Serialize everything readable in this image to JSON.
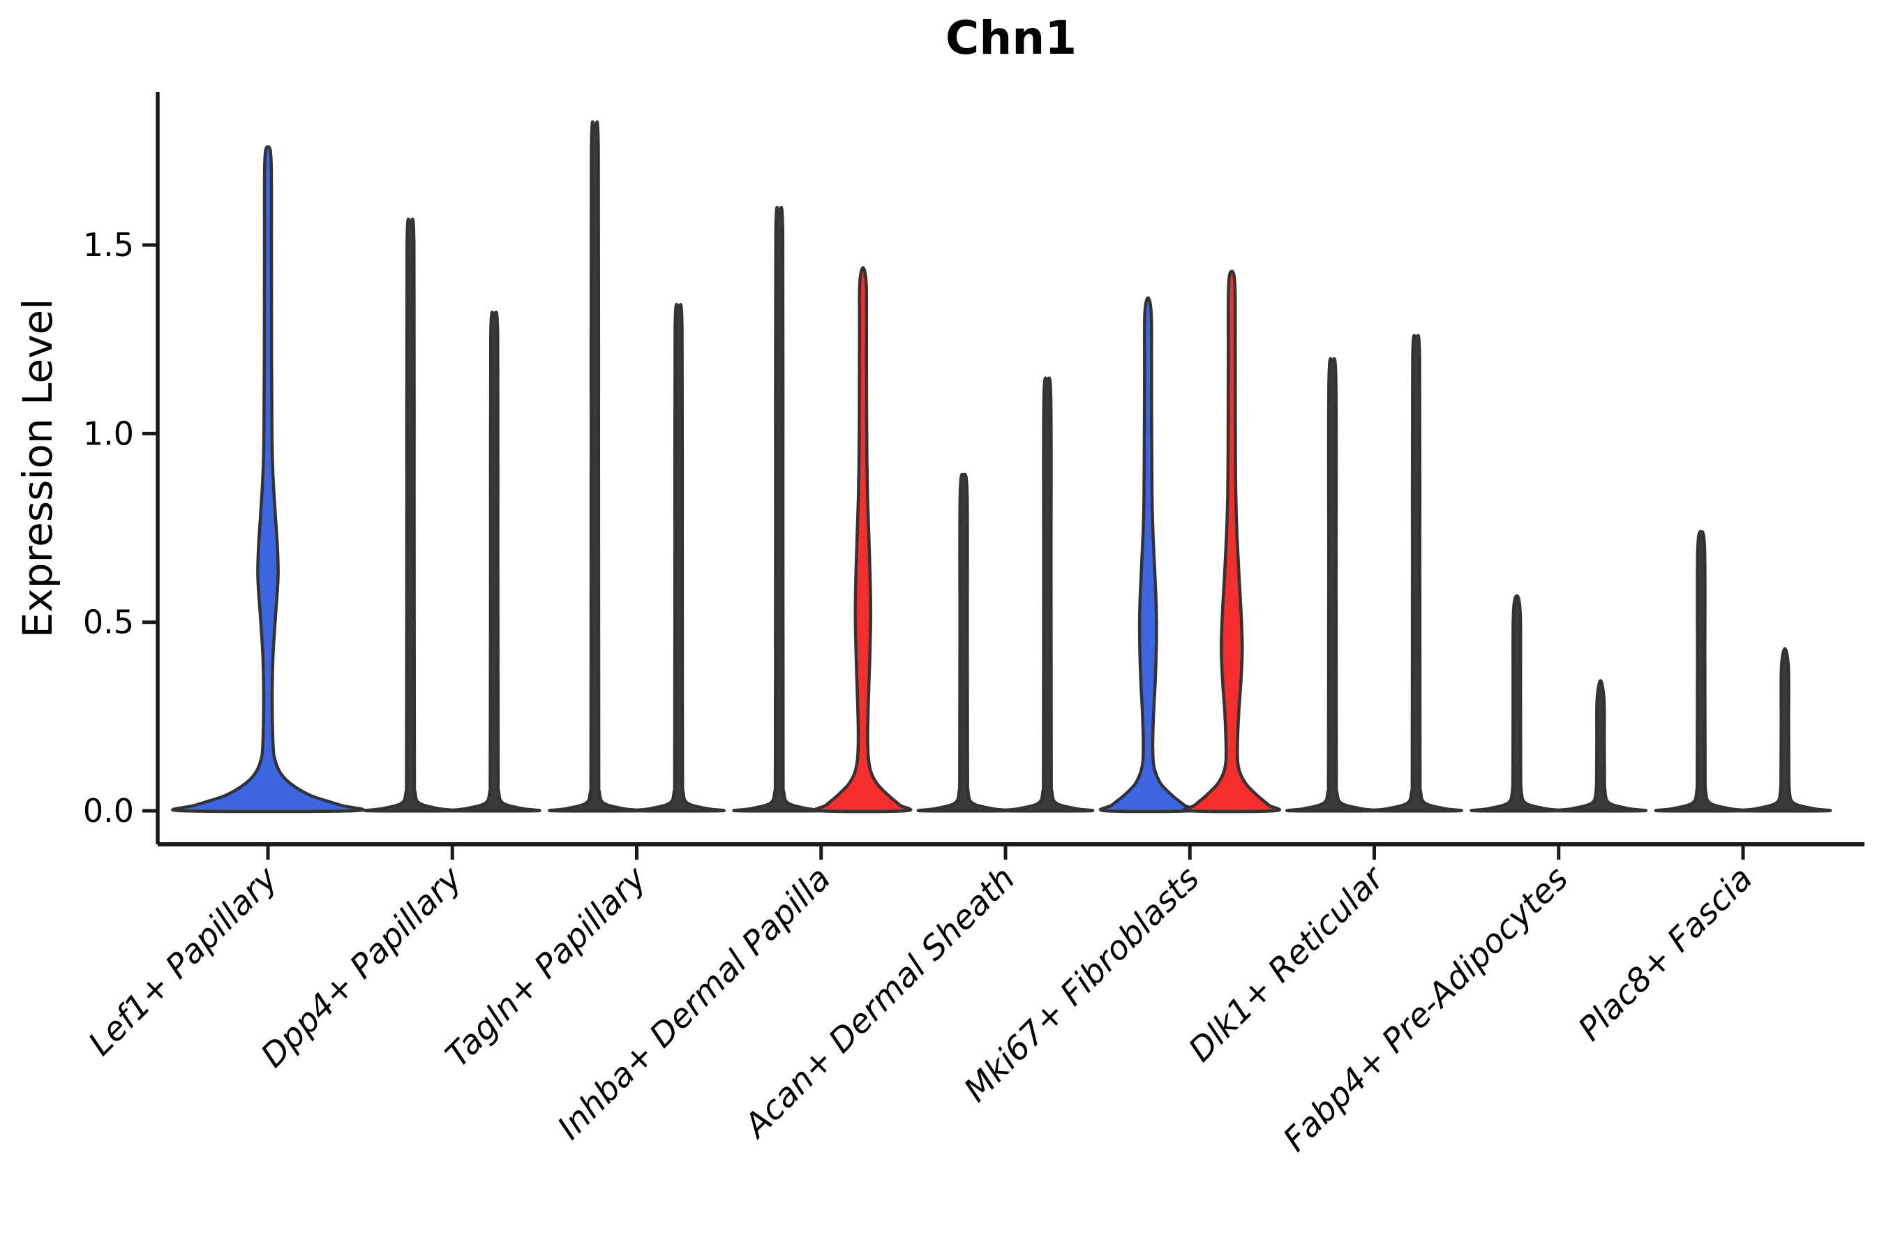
{
  "title": "Chn1",
  "colors": {
    "blue_fill": "#3E66E1",
    "red_fill": "#F42D2D",
    "violin_stroke": "#333333",
    "thin_fill": "#3A3A3A",
    "axis": "#1A1A1A",
    "text": "#000000"
  },
  "chart_data": {
    "type": "violin",
    "title": "Chn1",
    "xlabel": "",
    "ylabel": "Expression Level",
    "ylim": [
      0,
      1.9
    ],
    "yticks": {
      "values": [
        0.0,
        0.5,
        1.0,
        1.5
      ],
      "labels": [
        "0.0",
        "0.5",
        "1.0",
        "1.5"
      ]
    },
    "grid": false,
    "legend": "none",
    "categories": [
      "Lef1+ Papillary",
      "Dpp4+ Papillary",
      "Tagln+ Papillary",
      "Inhba+ Dermal Papilla",
      "Acan+ Dermal Sheath",
      "Mki67+ Fibroblasts",
      "Dlk1+ Reticular",
      "Fabp4+ Pre-Adipocytes",
      "Plac8+ Fascia"
    ],
    "groups": [
      {
        "category": "Lef1+ Papillary",
        "violins": [
          {
            "split": "center",
            "style": "blue",
            "max": 1.76,
            "profile": [
              [
                0,
                122
              ],
              [
                0.015,
                104
              ],
              [
                0.04,
                62
              ],
              [
                0.07,
                34
              ],
              [
                0.1,
                18
              ],
              [
                0.135,
                10
              ],
              [
                0.17,
                7.5
              ],
              [
                0.25,
                6.3
              ],
              [
                0.33,
                6.2
              ],
              [
                0.42,
                7.5
              ],
              [
                0.52,
                11
              ],
              [
                0.62,
                14.5
              ],
              [
                0.7,
                13.5
              ],
              [
                0.8,
                10
              ],
              [
                0.9,
                7
              ],
              [
                1.0,
                5.8
              ],
              [
                1.2,
                5.2
              ],
              [
                1.5,
                5
              ],
              [
                1.72,
                4.6
              ],
              [
                1.76,
                0
              ]
            ]
          }
        ]
      },
      {
        "category": "Dpp4+ Papillary",
        "violins": [
          {
            "split": "left",
            "style": "thin",
            "max": 1.55
          },
          {
            "split": "right",
            "style": "thin",
            "max": 1.31
          }
        ]
      },
      {
        "category": "Tagln+ Papillary",
        "violins": [
          {
            "split": "left",
            "style": "thin",
            "max": 1.8
          },
          {
            "split": "right",
            "style": "thin",
            "max": 1.33
          }
        ]
      },
      {
        "category": "Inhba+ Dermal Papilla",
        "violins": [
          {
            "split": "left",
            "style": "thin",
            "max": 1.58
          },
          {
            "split": "right",
            "style": "red",
            "max": 1.44,
            "profile": [
              [
                0,
                61
              ],
              [
                0.015,
                53
              ],
              [
                0.04,
                37
              ],
              [
                0.07,
                21
              ],
              [
                0.1,
                12
              ],
              [
                0.135,
                8
              ],
              [
                0.18,
                6.8
              ],
              [
                0.24,
                7
              ],
              [
                0.32,
                8.2
              ],
              [
                0.42,
                10
              ],
              [
                0.52,
                11
              ],
              [
                0.62,
                10.2
              ],
              [
                0.72,
                8.6
              ],
              [
                0.82,
                6.8
              ],
              [
                0.92,
                5.8
              ],
              [
                1.05,
                5.2
              ],
              [
                1.3,
                5
              ],
              [
                1.4,
                4.6
              ],
              [
                1.44,
                0
              ]
            ]
          }
        ]
      },
      {
        "category": "Acan+ Dermal Sheath",
        "violins": [
          {
            "split": "left",
            "style": "thin",
            "max": 0.89
          },
          {
            "split": "right",
            "style": "thin",
            "max": 1.14
          }
        ]
      },
      {
        "category": "Mki67+ Fibroblasts",
        "violins": [
          {
            "split": "left",
            "style": "blue",
            "max": 1.36,
            "profile": [
              [
                0,
                61
              ],
              [
                0.015,
                52
              ],
              [
                0.04,
                35
              ],
              [
                0.07,
                19
              ],
              [
                0.1,
                11
              ],
              [
                0.13,
                7.5
              ],
              [
                0.18,
                6.8
              ],
              [
                0.26,
                8
              ],
              [
                0.35,
                10.5
              ],
              [
                0.45,
                12
              ],
              [
                0.54,
                11.8
              ],
              [
                0.64,
                9.5
              ],
              [
                0.74,
                7
              ],
              [
                0.84,
                5.8
              ],
              [
                1.0,
                5.2
              ],
              [
                1.2,
                5
              ],
              [
                1.32,
                4.6
              ],
              [
                1.36,
                0
              ]
            ]
          },
          {
            "split": "right",
            "style": "red",
            "max": 1.43,
            "profile": [
              [
                0,
                61
              ],
              [
                0.015,
                53
              ],
              [
                0.04,
                37
              ],
              [
                0.07,
                21
              ],
              [
                0.1,
                12
              ],
              [
                0.13,
                8.5
              ],
              [
                0.18,
                8.2
              ],
              [
                0.26,
                10
              ],
              [
                0.34,
                13
              ],
              [
                0.43,
                15
              ],
              [
                0.52,
                13.5
              ],
              [
                0.62,
                10.5
              ],
              [
                0.72,
                7.8
              ],
              [
                0.82,
                6
              ],
              [
                0.95,
                5.3
              ],
              [
                1.2,
                5
              ],
              [
                1.39,
                4.6
              ],
              [
                1.43,
                0
              ]
            ]
          }
        ]
      },
      {
        "category": "Dlk1+ Reticular",
        "violins": [
          {
            "split": "left",
            "style": "thin",
            "max": 1.19
          },
          {
            "split": "right",
            "style": "thin",
            "max": 1.25
          }
        ]
      },
      {
        "category": "Fabp4+ Pre-Adipocytes",
        "violins": [
          {
            "split": "left",
            "style": "thin",
            "max": 0.57
          },
          {
            "split": "right",
            "style": "thin",
            "max": 0.345,
            "dots": [
              0.155,
              0.185
            ]
          }
        ]
      },
      {
        "category": "Plac8+ Fascia",
        "violins": [
          {
            "split": "left",
            "style": "thin",
            "max": 0.74,
            "dots": [
              0.26,
              0.29,
              0.435,
              0.52
            ]
          },
          {
            "split": "right",
            "style": "thin",
            "max": 0.43
          }
        ]
      }
    ]
  }
}
